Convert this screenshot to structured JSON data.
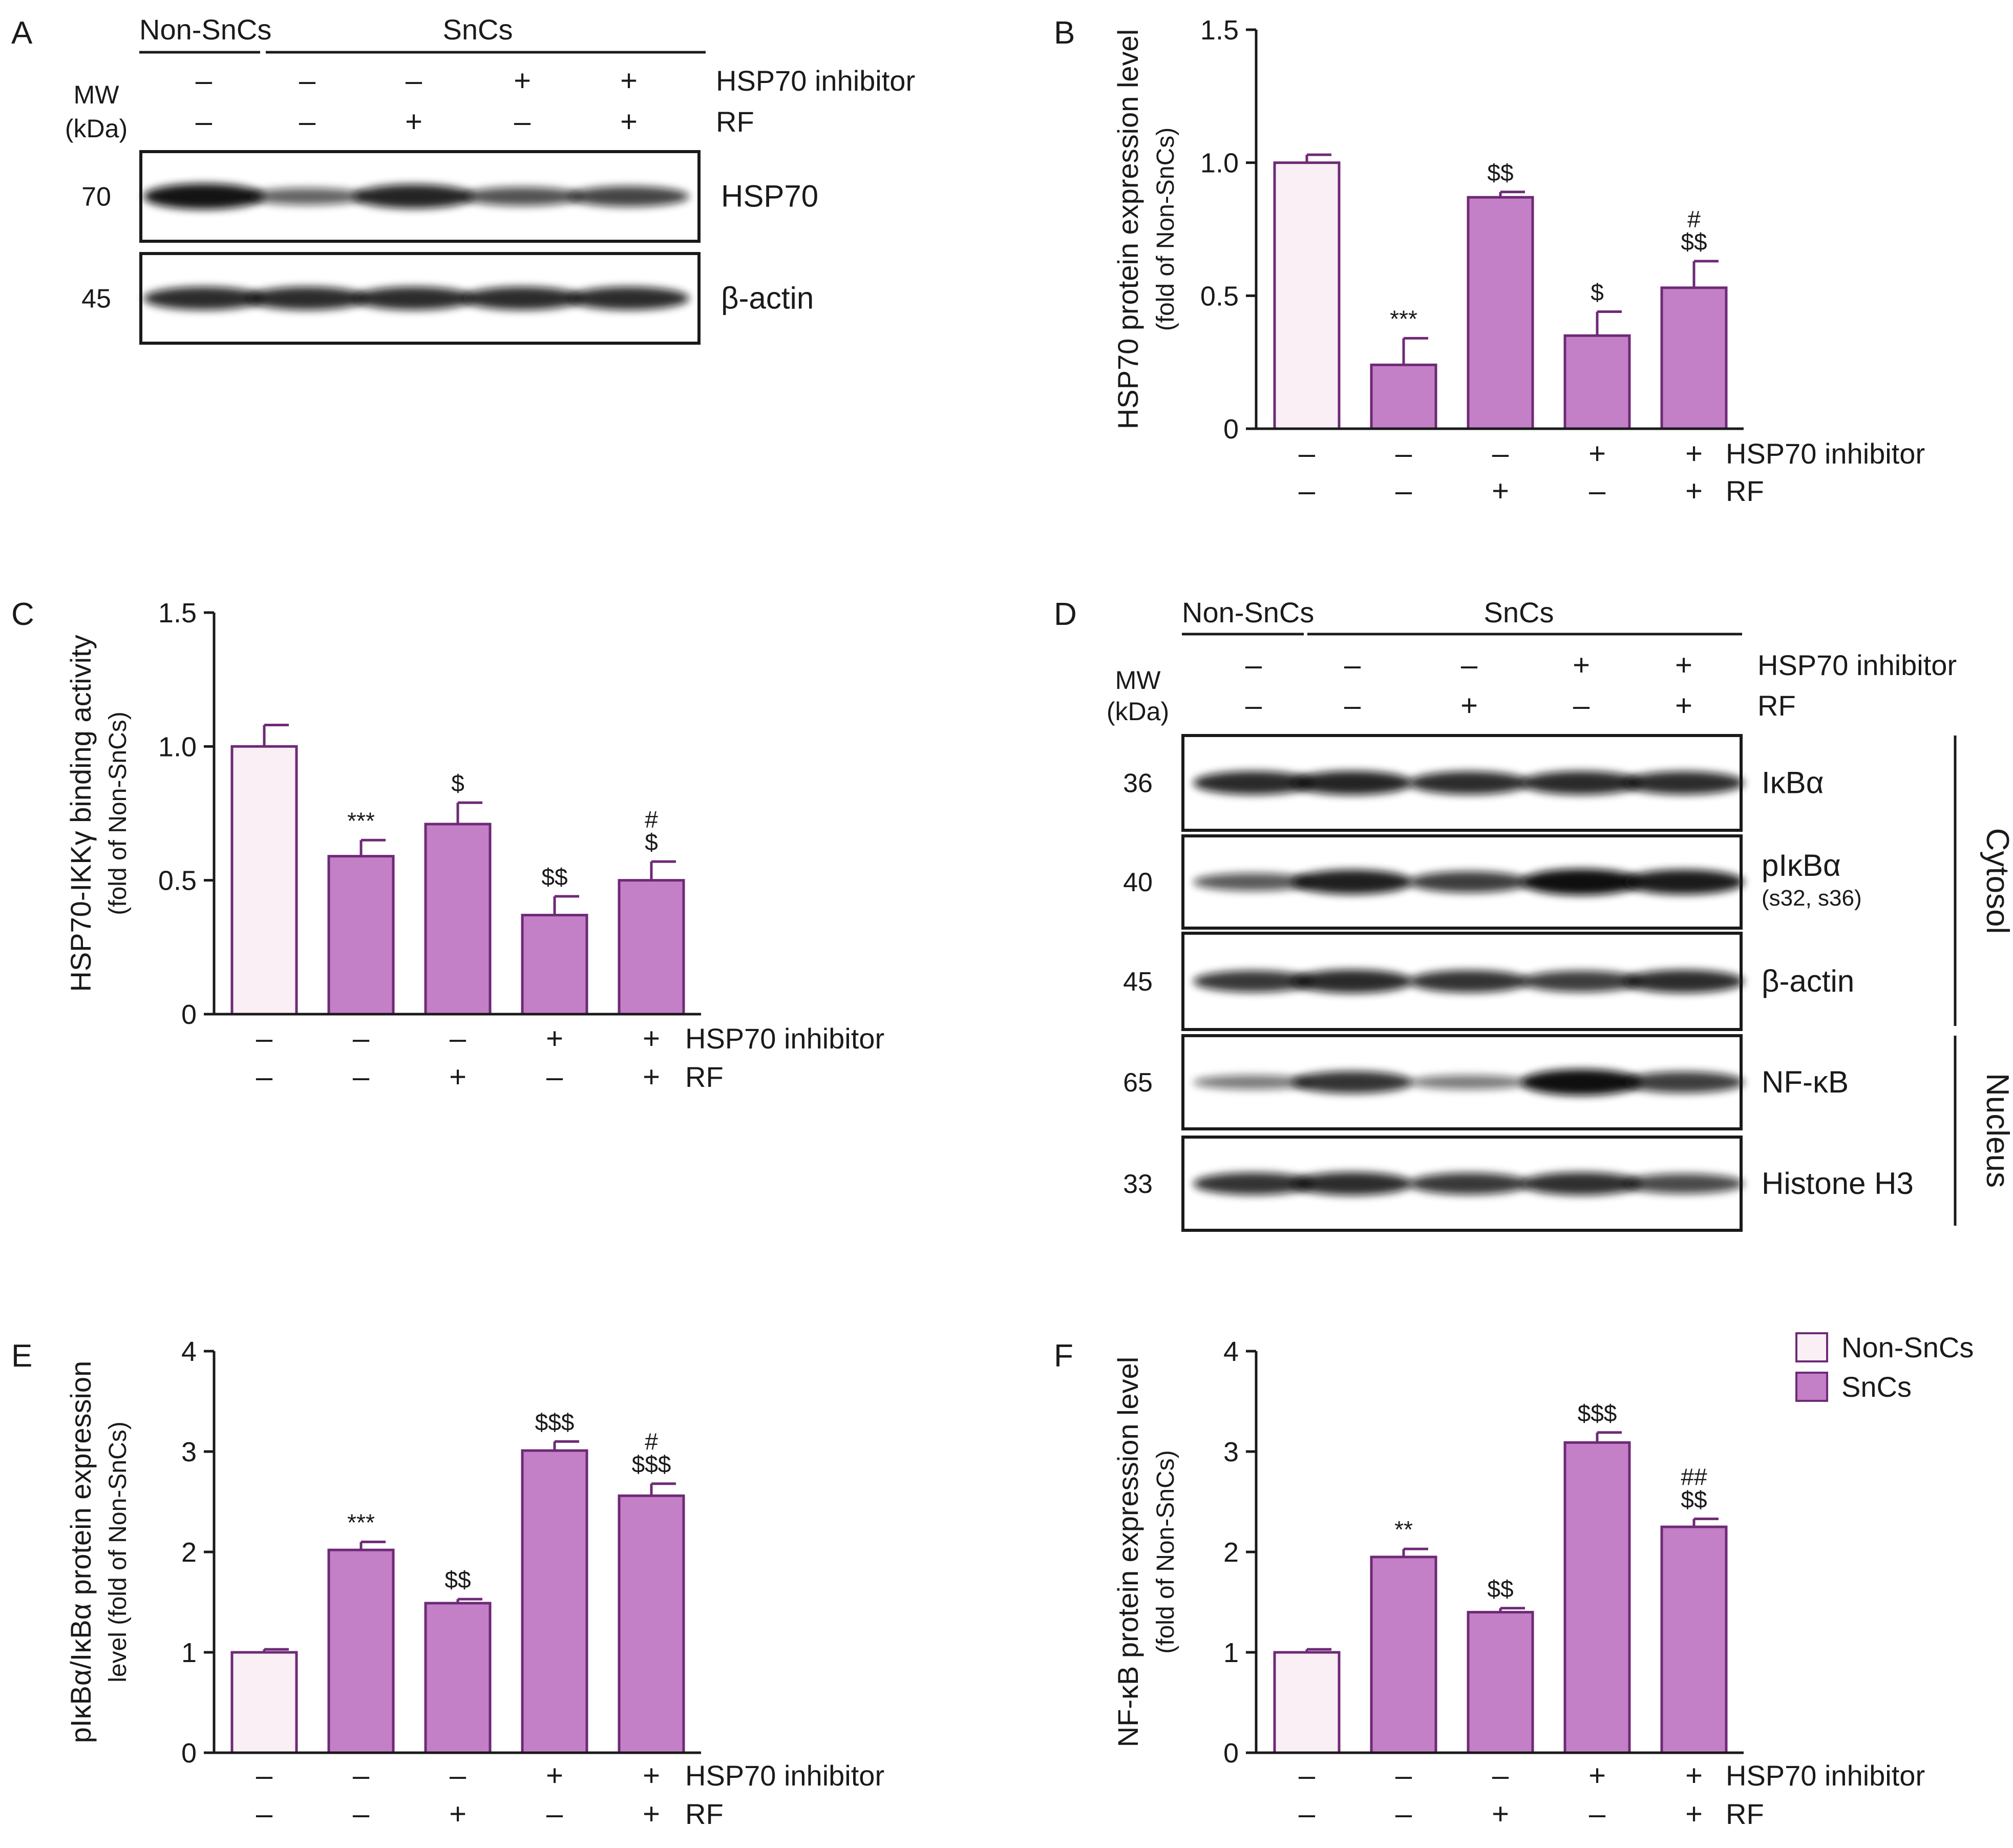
{
  "colors": {
    "non_sncs": "#fbeff6",
    "sncs": "#c380c6",
    "bar_stroke": "#6e2a76",
    "ink": "#1a1a1a"
  },
  "signs": {
    "hsp70_inhibitor": [
      "–",
      "–",
      "–",
      "+",
      "+"
    ],
    "rf": [
      "–",
      "–",
      "+",
      "–",
      "+"
    ]
  },
  "labels": {
    "hsp70_inhibitor": "HSP70 inhibitor",
    "rf": "RF",
    "non_sncs": "Non-SnCs",
    "sncs": "SnCs",
    "mw": "MW",
    "kda": "(kDa)",
    "cytosol": "Cytosol",
    "nucleus": "Nucleus"
  },
  "legend": {
    "entries": [
      "Non-SnCs",
      "SnCs"
    ]
  },
  "blot_a": {
    "panel": "A",
    "bands": [
      {
        "mw": "70",
        "label": "HSP70",
        "intensity": [
          0.95,
          0.45,
          0.85,
          0.55,
          0.65
        ]
      },
      {
        "mw": "45",
        "label": "β-actin",
        "intensity": [
          0.8,
          0.8,
          0.8,
          0.8,
          0.8
        ]
      }
    ]
  },
  "blot_d": {
    "panel": "D",
    "bands": [
      {
        "mw": "36",
        "label": "IκBα",
        "sublabel": "",
        "intensity": [
          0.82,
          0.84,
          0.8,
          0.82,
          0.8
        ]
      },
      {
        "mw": "40",
        "label": "pIκBα",
        "sublabel": "(s32, s36)",
        "intensity": [
          0.5,
          0.88,
          0.7,
          0.98,
          0.9
        ]
      },
      {
        "mw": "45",
        "label": "β-actin",
        "sublabel": "",
        "intensity": [
          0.72,
          0.82,
          0.76,
          0.7,
          0.8
        ]
      },
      {
        "mw": "65",
        "label": "NF-κB",
        "sublabel": "",
        "intensity": [
          0.3,
          0.75,
          0.3,
          0.98,
          0.7
        ]
      },
      {
        "mw": "33",
        "label": "Histone H3",
        "sublabel": "",
        "intensity": [
          0.75,
          0.8,
          0.72,
          0.78,
          0.62
        ]
      }
    ]
  },
  "chart_data": [
    {
      "panel": "B",
      "type": "bar",
      "categories": [
        "Non-SnCs",
        "SnCs",
        "SnCs + RF",
        "SnCs + HSP70 inhibitor",
        "SnCs + HSP70 inhibitor + RF"
      ],
      "values": [
        1.0,
        0.24,
        0.87,
        0.35,
        0.53
      ],
      "errors": [
        0.03,
        0.1,
        0.02,
        0.09,
        0.1
      ],
      "significance": [
        [],
        [
          "***"
        ],
        [
          "$$"
        ],
        [
          "$"
        ],
        [
          "#",
          "$$"
        ]
      ],
      "ylabel": "HSP70 protein expression level",
      "ylabel_sub": "(fold of Non-SnCs)",
      "ylim": [
        0,
        1.5
      ],
      "yticks": [
        0,
        0.5,
        1.0,
        1.5
      ],
      "ytick_labels": [
        "0",
        "0.5",
        "1.0",
        "1.5"
      ]
    },
    {
      "panel": "C",
      "type": "bar",
      "categories": [
        "Non-SnCs",
        "SnCs",
        "SnCs + RF",
        "SnCs + HSP70 inhibitor",
        "SnCs + HSP70 inhibitor + RF"
      ],
      "values": [
        1.0,
        0.59,
        0.71,
        0.37,
        0.5
      ],
      "errors": [
        0.08,
        0.06,
        0.08,
        0.07,
        0.07
      ],
      "significance": [
        [],
        [
          "***"
        ],
        [
          "$"
        ],
        [
          "$$"
        ],
        [
          "#",
          "$"
        ]
      ],
      "ylabel": "HSP70-IKKγ binding activity",
      "ylabel_sub": "(fold of Non-SnCs)",
      "ylim": [
        0,
        1.5
      ],
      "yticks": [
        0,
        0.5,
        1.0,
        1.5
      ],
      "ytick_labels": [
        "0",
        "0.5",
        "1.0",
        "1.5"
      ]
    },
    {
      "panel": "E",
      "type": "bar",
      "categories": [
        "Non-SnCs",
        "SnCs",
        "SnCs + RF",
        "SnCs + HSP70 inhibitor",
        "SnCs + HSP70 inhibitor + RF"
      ],
      "values": [
        1.0,
        2.02,
        1.49,
        3.01,
        2.56
      ],
      "errors": [
        0.03,
        0.08,
        0.04,
        0.09,
        0.12
      ],
      "significance": [
        [],
        [
          "***"
        ],
        [
          "$$"
        ],
        [
          "$$$"
        ],
        [
          "#",
          "$$$"
        ]
      ],
      "ylabel": "pIκBα/IκBα protein expression",
      "ylabel_sub": "level (fold of Non-SnCs)",
      "ylim": [
        0,
        4
      ],
      "yticks": [
        0,
        1,
        2,
        3,
        4
      ],
      "ytick_labels": [
        "0",
        "1",
        "2",
        "3",
        "4"
      ]
    },
    {
      "panel": "F",
      "type": "bar",
      "categories": [
        "Non-SnCs",
        "SnCs",
        "SnCs + RF",
        "SnCs + HSP70 inhibitor",
        "SnCs + HSP70 inhibitor + RF"
      ],
      "values": [
        1.0,
        1.95,
        1.4,
        3.09,
        2.25
      ],
      "errors": [
        0.03,
        0.08,
        0.04,
        0.1,
        0.08
      ],
      "significance": [
        [],
        [
          "**"
        ],
        [
          "$$"
        ],
        [
          "$$$"
        ],
        [
          "##",
          "$$"
        ]
      ],
      "ylabel": "NF-κB protein expression level",
      "ylabel_sub": "(fold of Non-SnCs)",
      "ylim": [
        0,
        4
      ],
      "yticks": [
        0,
        1,
        2,
        3,
        4
      ],
      "ytick_labels": [
        "0",
        "1",
        "2",
        "3",
        "4"
      ]
    }
  ]
}
